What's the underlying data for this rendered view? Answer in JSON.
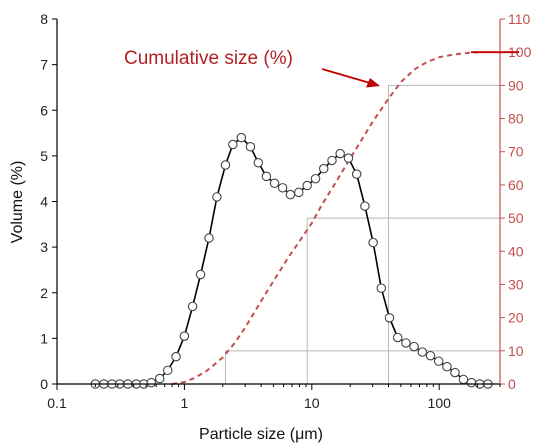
{
  "chart_data": {
    "type": "line",
    "xlabel": "Particle size (μm)",
    "ylabel": "Volume (%)",
    "xscale": "log",
    "xlim": [
      0.1,
      300
    ],
    "ylim": [
      0,
      8
    ],
    "y2lim": [
      0,
      110
    ],
    "x_ticks": [
      0.1,
      1,
      10,
      100
    ],
    "x_tick_labels": [
      "0.1",
      "1",
      "10",
      "100"
    ],
    "y_ticks": [
      0,
      1,
      2,
      3,
      4,
      5,
      6,
      7,
      8
    ],
    "y2_ticks": [
      0,
      10,
      20,
      30,
      40,
      50,
      60,
      70,
      80,
      90,
      100,
      110
    ],
    "annotation": "Cumulative size (%)",
    "colors": {
      "volume": "#000000",
      "cumulative": "#c0504d",
      "arrow": "#c00000",
      "guide": "#b8b8b8"
    },
    "series": [
      {
        "axis": "left",
        "style": "solid line with open circle markers",
        "x": [
          0.2,
          0.233,
          0.27,
          0.31,
          0.36,
          0.42,
          0.48,
          0.55,
          0.64,
          0.74,
          0.86,
          1.0,
          1.16,
          1.34,
          1.56,
          1.8,
          2.1,
          2.4,
          2.8,
          3.3,
          3.8,
          4.4,
          5.1,
          5.9,
          6.8,
          7.9,
          9.2,
          10.7,
          12.4,
          14.4,
          16.7,
          19.4,
          22.5,
          26.1,
          30.3,
          35.1,
          40.7,
          47.2,
          54.8,
          63.5,
          73.7,
          85.4,
          99.1,
          115,
          133,
          155,
          179,
          208,
          241
        ],
        "values": [
          0,
          0,
          0,
          0,
          0,
          0,
          0,
          0.03,
          0.12,
          0.3,
          0.6,
          1.05,
          1.7,
          2.4,
          3.2,
          4.1,
          4.8,
          5.25,
          5.4,
          5.2,
          4.85,
          4.55,
          4.4,
          4.3,
          4.15,
          4.2,
          4.35,
          4.5,
          4.72,
          4.9,
          5.05,
          4.95,
          4.6,
          3.9,
          3.1,
          2.1,
          1.45,
          1.02,
          0.9,
          0.82,
          0.7,
          0.62,
          0.5,
          0.38,
          0.25,
          0.1,
          0.03,
          0,
          0
        ]
      },
      {
        "axis": "right",
        "style": "dashed line",
        "x": [
          0.8,
          1.0,
          1.2,
          1.5,
          2.0,
          2.5,
          3.0,
          4.0,
          5.0,
          6.5,
          8.0,
          10,
          12,
          15,
          20,
          25,
          30,
          40,
          50,
          65,
          80,
          100,
          130,
          160,
          200
        ],
        "values": [
          0,
          0.6,
          1.8,
          4,
          8,
          12.5,
          17,
          25,
          31,
          38,
          43,
          48.5,
          54,
          60,
          68,
          74,
          79,
          86,
          91,
          95,
          97,
          98.5,
          99.3,
          99.7,
          100
        ]
      }
    ],
    "guide_lines": [
      {
        "percent": 10,
        "x": 2.1
      },
      {
        "percent": 50,
        "x": 9.2
      },
      {
        "percent": 90,
        "x": 40
      }
    ]
  }
}
